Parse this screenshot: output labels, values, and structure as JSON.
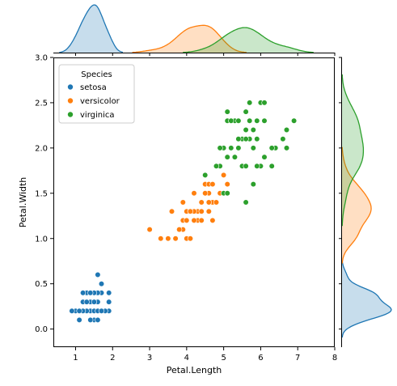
{
  "chart_data": {
    "type": "scatter",
    "xlabel": "Petal.Length",
    "ylabel": "Petal.Width",
    "xlim": [
      0.4,
      8.0
    ],
    "ylim": [
      -0.2,
      3.0
    ],
    "xticks": [
      1,
      2,
      3,
      4,
      5,
      6,
      7,
      8
    ],
    "xtick_labels": [
      "1",
      "2",
      "3",
      "4",
      "5",
      "6",
      "7",
      "8"
    ],
    "yticks": [
      0.0,
      0.5,
      1.0,
      1.5,
      2.0,
      2.5,
      3.0
    ],
    "ytick_labels": [
      "0.0",
      "0.5",
      "1.0",
      "1.5",
      "2.0",
      "2.5",
      "3.0"
    ],
    "grid": false,
    "legend": {
      "title": "Species",
      "placement": "top-left"
    },
    "marginals": {
      "top": "kde of Petal.Length by species",
      "right": "kde of Petal.Width by species"
    },
    "series": [
      {
        "name": "setosa",
        "color": "#1f77b4",
        "points": [
          [
            1.4,
            0.2
          ],
          [
            1.3,
            0.2
          ],
          [
            1.5,
            0.2
          ],
          [
            1.7,
            0.4
          ],
          [
            1.4,
            0.3
          ],
          [
            1.5,
            0.1
          ],
          [
            1.6,
            0.2
          ],
          [
            1.1,
            0.1
          ],
          [
            1.2,
            0.2
          ],
          [
            1.3,
            0.4
          ],
          [
            1.0,
            0.2
          ],
          [
            1.7,
            0.5
          ],
          [
            1.9,
            0.2
          ],
          [
            1.6,
            0.4
          ],
          [
            1.5,
            0.4
          ],
          [
            1.4,
            0.1
          ],
          [
            1.2,
            0.3
          ],
          [
            1.3,
            0.3
          ],
          [
            1.6,
            0.6
          ],
          [
            1.9,
            0.4
          ],
          [
            1.6,
            0.3
          ],
          [
            0.9,
            0.2
          ],
          [
            1.8,
            0.2
          ],
          [
            1.4,
            0.4
          ],
          [
            1.5,
            0.3
          ],
          [
            1.1,
            0.2
          ],
          [
            1.7,
            0.2
          ],
          [
            1.9,
            0.3
          ],
          [
            1.2,
            0.4
          ],
          [
            1.6,
            0.1
          ]
        ]
      },
      {
        "name": "versicolor",
        "color": "#ff7f0e",
        "points": [
          [
            4.7,
            1.4
          ],
          [
            4.5,
            1.5
          ],
          [
            4.9,
            1.5
          ],
          [
            4.0,
            1.3
          ],
          [
            4.6,
            1.5
          ],
          [
            3.3,
            1.0
          ],
          [
            4.6,
            1.3
          ],
          [
            3.9,
            1.4
          ],
          [
            3.5,
            1.0
          ],
          [
            4.2,
            1.5
          ],
          [
            4.0,
            1.0
          ],
          [
            4.7,
            1.4
          ],
          [
            3.6,
            1.3
          ],
          [
            4.4,
            1.4
          ],
          [
            4.1,
            1.0
          ],
          [
            4.5,
            1.5
          ],
          [
            3.9,
            1.1
          ],
          [
            4.8,
            1.8
          ],
          [
            4.0,
            1.3
          ],
          [
            4.9,
            1.5
          ],
          [
            4.7,
            1.2
          ],
          [
            4.3,
            1.3
          ],
          [
            4.4,
            1.4
          ],
          [
            4.8,
            1.4
          ],
          [
            5.0,
            1.7
          ],
          [
            3.8,
            1.1
          ],
          [
            3.7,
            1.0
          ],
          [
            3.9,
            1.2
          ],
          [
            5.1,
            1.6
          ],
          [
            4.5,
            1.6
          ],
          [
            4.4,
            1.3
          ],
          [
            4.1,
            1.3
          ],
          [
            4.0,
            1.2
          ],
          [
            4.2,
            1.3
          ],
          [
            3.0,
            1.1
          ],
          [
            4.1,
            1.3
          ],
          [
            4.6,
            1.4
          ],
          [
            4.3,
            1.2
          ],
          [
            4.4,
            1.2
          ],
          [
            4.6,
            1.6
          ],
          [
            3.7,
            1.0
          ],
          [
            4.7,
            1.6
          ],
          [
            4.2,
            1.2
          ]
        ]
      },
      {
        "name": "virginica",
        "color": "#2ca02c",
        "points": [
          [
            6.0,
            2.5
          ],
          [
            5.1,
            1.9
          ],
          [
            5.9,
            2.1
          ],
          [
            5.6,
            1.8
          ],
          [
            5.8,
            2.2
          ],
          [
            6.6,
            2.1
          ],
          [
            4.5,
            1.7
          ],
          [
            6.3,
            1.8
          ],
          [
            6.1,
            2.5
          ],
          [
            5.3,
            1.9
          ],
          [
            5.5,
            2.1
          ],
          [
            5.0,
            2.0
          ],
          [
            5.1,
            2.4
          ],
          [
            5.3,
            2.3
          ],
          [
            5.5,
            1.8
          ],
          [
            6.7,
            2.2
          ],
          [
            6.9,
            2.3
          ],
          [
            5.0,
            1.5
          ],
          [
            5.7,
            2.3
          ],
          [
            4.9,
            2.0
          ],
          [
            6.7,
            2.0
          ],
          [
            4.9,
            1.8
          ],
          [
            5.7,
            2.1
          ],
          [
            6.0,
            1.8
          ],
          [
            4.8,
            1.8
          ],
          [
            5.6,
            2.1
          ],
          [
            5.8,
            1.6
          ],
          [
            6.4,
            2.0
          ],
          [
            5.6,
            2.2
          ],
          [
            5.1,
            1.5
          ],
          [
            5.6,
            1.4
          ],
          [
            6.1,
            2.3
          ],
          [
            5.6,
            2.4
          ],
          [
            5.5,
            1.8
          ],
          [
            5.4,
            2.1
          ],
          [
            5.4,
            2.3
          ],
          [
            5.1,
            2.3
          ],
          [
            5.9,
            2.3
          ],
          [
            5.7,
            2.5
          ],
          [
            5.2,
            2.3
          ],
          [
            5.2,
            2.0
          ],
          [
            5.4,
            2.0
          ],
          [
            6.1,
            1.9
          ],
          [
            5.8,
            2.0
          ],
          [
            5.3,
            1.9
          ],
          [
            5.6,
            1.8
          ],
          [
            5.9,
            1.8
          ],
          [
            4.5,
            1.7
          ],
          [
            6.3,
            2.0
          ]
        ]
      }
    ]
  }
}
